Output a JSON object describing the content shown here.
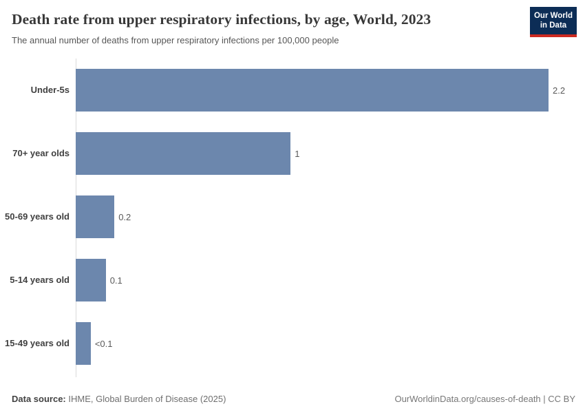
{
  "header": {
    "title": "Death rate from upper respiratory infections, by age, World, 2023",
    "subtitle": "The annual number of deaths from upper respiratory infections per 100,000 people",
    "logo": {
      "line1": "Our World",
      "line2": "in Data"
    }
  },
  "chart_data": {
    "type": "bar",
    "orientation": "horizontal",
    "title": "Death rate from upper respiratory infections, by age, World, 2023",
    "xlabel": "",
    "ylabel": "",
    "categories": [
      "Under-5s",
      "70+ year olds",
      "50-69 years old",
      "5-14 years old",
      "15-49 years old"
    ],
    "values": [
      2.2,
      1.0,
      0.18,
      0.14,
      0.07
    ],
    "value_labels": [
      "2.2",
      "1",
      "0.2",
      "0.1",
      "<0.1"
    ],
    "xlim": [
      0,
      2.2
    ],
    "grid": false,
    "legend": false,
    "bar_color": "#6c87ad",
    "axis_line_color": "#dadada"
  },
  "footer": {
    "datasource_label": "Data source:",
    "datasource_value": " IHME, Global Burden of Disease (2025)",
    "credit": "OurWorldinData.org/causes-of-death | CC BY"
  },
  "colors": {
    "bar": "#6c87ad",
    "logo_navy": "#0c2d56",
    "logo_red": "#cc2a21",
    "title_text": "#383838",
    "subtitle_text": "#565656",
    "value_text": "#595959"
  }
}
